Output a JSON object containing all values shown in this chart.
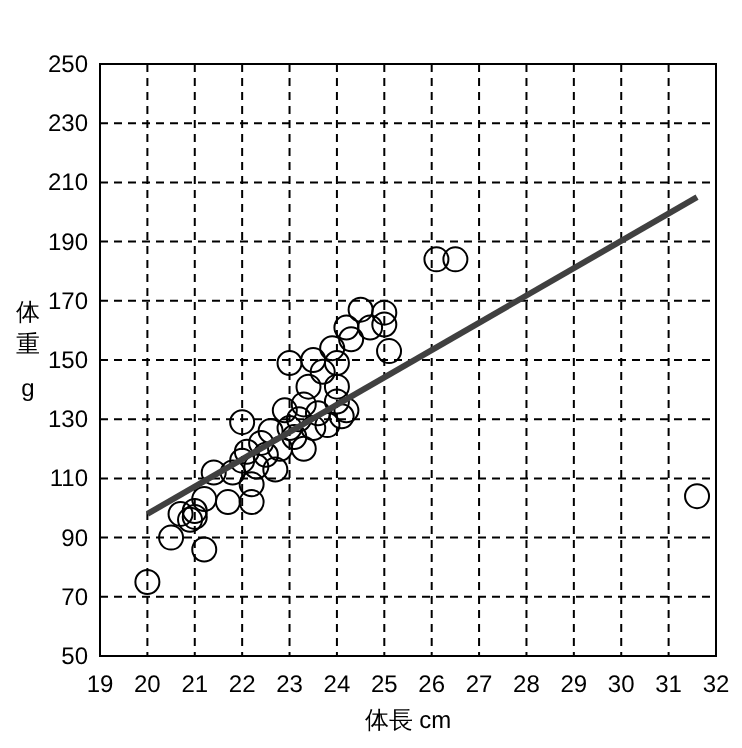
{
  "chart_data": {
    "type": "scatter",
    "xlabel": "体長 cm",
    "ylabel": "体重 g",
    "xlim": [
      19,
      32
    ],
    "ylim": [
      50,
      250
    ],
    "xticks": [
      19,
      20,
      21,
      22,
      23,
      24,
      25,
      26,
      27,
      28,
      29,
      30,
      31,
      32
    ],
    "yticks": [
      50,
      70,
      90,
      110,
      130,
      150,
      170,
      190,
      210,
      230,
      250
    ],
    "grid": true,
    "series": [
      {
        "marker": "circle",
        "color": "#000000",
        "x": [
          20,
          20.5,
          20.7,
          20.9,
          21,
          21,
          21.2,
          21.2,
          21.4,
          21.7,
          21.8,
          22,
          22,
          22.1,
          22.2,
          22.2,
          22.3,
          22.4,
          22.5,
          22.6,
          22.7,
          22.8,
          22.9,
          23,
          23,
          23.1,
          23.2,
          23.3,
          23.3,
          23.4,
          23.5,
          23.5,
          23.6,
          23.7,
          23.8,
          23.9,
          24,
          24,
          24,
          24.1,
          24.2,
          24.2,
          24.3,
          24.5,
          24.7,
          25,
          25,
          25.1,
          26.1,
          26.5,
          31.6
        ],
        "values": [
          75,
          90,
          98,
          96,
          97,
          99,
          86,
          103,
          112,
          102,
          112,
          129,
          116,
          119,
          102,
          108,
          114,
          122,
          118,
          126,
          113,
          120,
          133,
          149,
          127,
          124,
          130,
          120,
          135,
          141,
          150,
          127,
          132,
          146,
          128,
          154,
          149,
          136,
          141,
          131,
          161,
          133,
          157,
          167,
          161,
          166,
          162,
          153,
          184,
          184,
          104
        ]
      },
      {
        "type": "line",
        "color": "#404040",
        "x": [
          20,
          31.6
        ],
        "values": [
          98,
          205
        ]
      }
    ]
  }
}
